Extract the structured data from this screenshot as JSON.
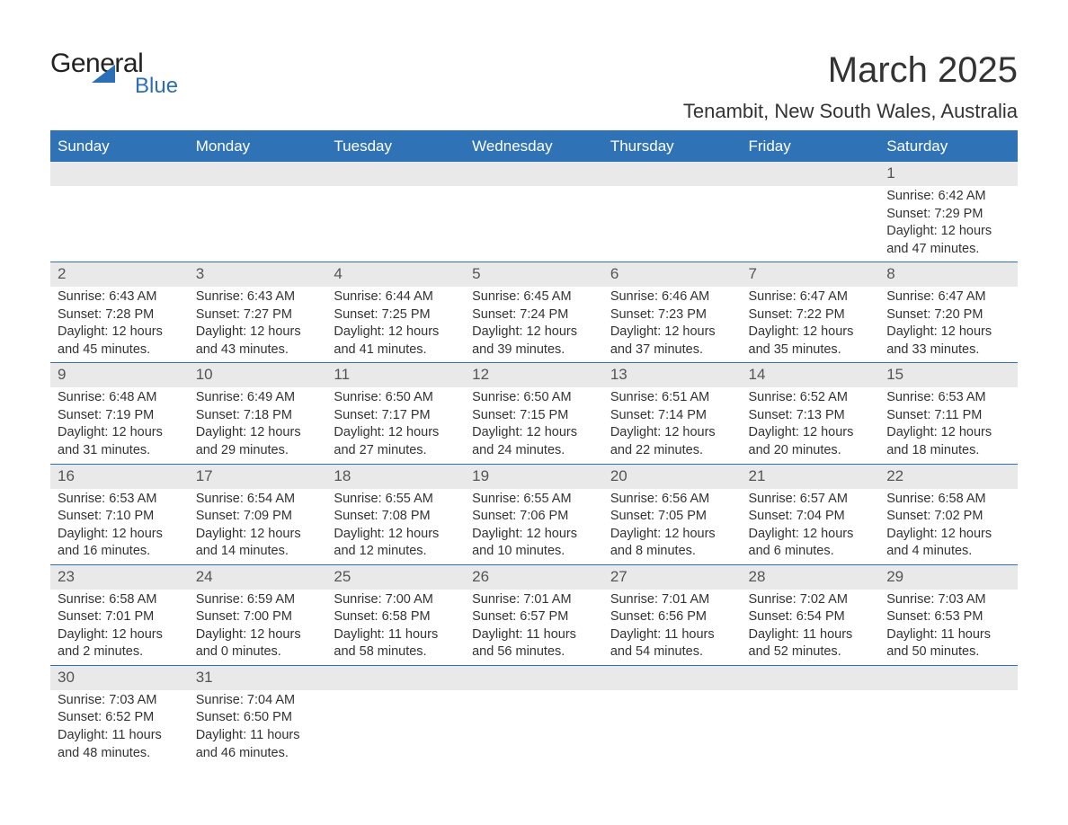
{
  "logo": {
    "word1": "General",
    "word2": "Blue"
  },
  "title": "March 2025",
  "location": "Tenambit, New South Wales, Australia",
  "colors": {
    "header_bg": "#2f73b6",
    "header_text": "#ffffff",
    "daynum_bg": "#e9e9e9",
    "daynum_text": "#555555",
    "body_text": "#333333",
    "rule": "#2f73b6",
    "logo_blue": "#2a6fb5"
  },
  "typography": {
    "title_fontsize": 40,
    "location_fontsize": 22,
    "header_fontsize": 17,
    "daynum_fontsize": 17,
    "detail_fontsize": 14.5,
    "font_family": "Arial"
  },
  "layout": {
    "columns": 7,
    "rows": 6,
    "cell_aspect": "wide"
  },
  "labels": {
    "sunrise": "Sunrise: ",
    "sunset": "Sunset: ",
    "daylight": "Daylight: "
  },
  "days_of_week": [
    "Sunday",
    "Monday",
    "Tuesday",
    "Wednesday",
    "Thursday",
    "Friday",
    "Saturday"
  ],
  "weeks": [
    [
      null,
      null,
      null,
      null,
      null,
      null,
      {
        "n": "1",
        "sunrise": "6:42 AM",
        "sunset": "7:29 PM",
        "daylight": "12 hours and 47 minutes."
      }
    ],
    [
      {
        "n": "2",
        "sunrise": "6:43 AM",
        "sunset": "7:28 PM",
        "daylight": "12 hours and 45 minutes."
      },
      {
        "n": "3",
        "sunrise": "6:43 AM",
        "sunset": "7:27 PM",
        "daylight": "12 hours and 43 minutes."
      },
      {
        "n": "4",
        "sunrise": "6:44 AM",
        "sunset": "7:25 PM",
        "daylight": "12 hours and 41 minutes."
      },
      {
        "n": "5",
        "sunrise": "6:45 AM",
        "sunset": "7:24 PM",
        "daylight": "12 hours and 39 minutes."
      },
      {
        "n": "6",
        "sunrise": "6:46 AM",
        "sunset": "7:23 PM",
        "daylight": "12 hours and 37 minutes."
      },
      {
        "n": "7",
        "sunrise": "6:47 AM",
        "sunset": "7:22 PM",
        "daylight": "12 hours and 35 minutes."
      },
      {
        "n": "8",
        "sunrise": "6:47 AM",
        "sunset": "7:20 PM",
        "daylight": "12 hours and 33 minutes."
      }
    ],
    [
      {
        "n": "9",
        "sunrise": "6:48 AM",
        "sunset": "7:19 PM",
        "daylight": "12 hours and 31 minutes."
      },
      {
        "n": "10",
        "sunrise": "6:49 AM",
        "sunset": "7:18 PM",
        "daylight": "12 hours and 29 minutes."
      },
      {
        "n": "11",
        "sunrise": "6:50 AM",
        "sunset": "7:17 PM",
        "daylight": "12 hours and 27 minutes."
      },
      {
        "n": "12",
        "sunrise": "6:50 AM",
        "sunset": "7:15 PM",
        "daylight": "12 hours and 24 minutes."
      },
      {
        "n": "13",
        "sunrise": "6:51 AM",
        "sunset": "7:14 PM",
        "daylight": "12 hours and 22 minutes."
      },
      {
        "n": "14",
        "sunrise": "6:52 AM",
        "sunset": "7:13 PM",
        "daylight": "12 hours and 20 minutes."
      },
      {
        "n": "15",
        "sunrise": "6:53 AM",
        "sunset": "7:11 PM",
        "daylight": "12 hours and 18 minutes."
      }
    ],
    [
      {
        "n": "16",
        "sunrise": "6:53 AM",
        "sunset": "7:10 PM",
        "daylight": "12 hours and 16 minutes."
      },
      {
        "n": "17",
        "sunrise": "6:54 AM",
        "sunset": "7:09 PM",
        "daylight": "12 hours and 14 minutes."
      },
      {
        "n": "18",
        "sunrise": "6:55 AM",
        "sunset": "7:08 PM",
        "daylight": "12 hours and 12 minutes."
      },
      {
        "n": "19",
        "sunrise": "6:55 AM",
        "sunset": "7:06 PM",
        "daylight": "12 hours and 10 minutes."
      },
      {
        "n": "20",
        "sunrise": "6:56 AM",
        "sunset": "7:05 PM",
        "daylight": "12 hours and 8 minutes."
      },
      {
        "n": "21",
        "sunrise": "6:57 AM",
        "sunset": "7:04 PM",
        "daylight": "12 hours and 6 minutes."
      },
      {
        "n": "22",
        "sunrise": "6:58 AM",
        "sunset": "7:02 PM",
        "daylight": "12 hours and 4 minutes."
      }
    ],
    [
      {
        "n": "23",
        "sunrise": "6:58 AM",
        "sunset": "7:01 PM",
        "daylight": "12 hours and 2 minutes."
      },
      {
        "n": "24",
        "sunrise": "6:59 AM",
        "sunset": "7:00 PM",
        "daylight": "12 hours and 0 minutes."
      },
      {
        "n": "25",
        "sunrise": "7:00 AM",
        "sunset": "6:58 PM",
        "daylight": "11 hours and 58 minutes."
      },
      {
        "n": "26",
        "sunrise": "7:01 AM",
        "sunset": "6:57 PM",
        "daylight": "11 hours and 56 minutes."
      },
      {
        "n": "27",
        "sunrise": "7:01 AM",
        "sunset": "6:56 PM",
        "daylight": "11 hours and 54 minutes."
      },
      {
        "n": "28",
        "sunrise": "7:02 AM",
        "sunset": "6:54 PM",
        "daylight": "11 hours and 52 minutes."
      },
      {
        "n": "29",
        "sunrise": "7:03 AM",
        "sunset": "6:53 PM",
        "daylight": "11 hours and 50 minutes."
      }
    ],
    [
      {
        "n": "30",
        "sunrise": "7:03 AM",
        "sunset": "6:52 PM",
        "daylight": "11 hours and 48 minutes."
      },
      {
        "n": "31",
        "sunrise": "7:04 AM",
        "sunset": "6:50 PM",
        "daylight": "11 hours and 46 minutes."
      },
      null,
      null,
      null,
      null,
      null
    ]
  ]
}
